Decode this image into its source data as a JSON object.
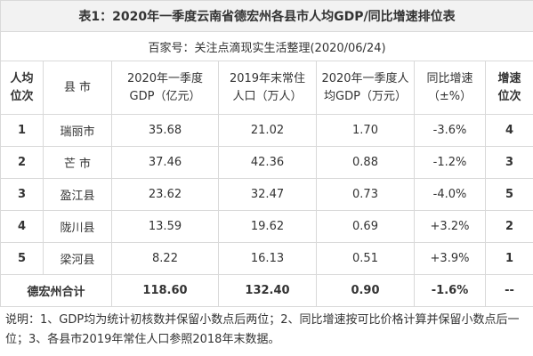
{
  "table": {
    "title": "表1：2020年一季度云南省德宏州各县市人均GDP/同比增速排位表",
    "source": "百家号：关注点滴现实生活整理(2020/06/24)",
    "header": [
      [
        "人均",
        "位次"
      ],
      [
        "县 市"
      ],
      [
        "2020年一季度",
        "GDP（亿元）"
      ],
      [
        "2019年末常住",
        "人口（万人）"
      ],
      [
        "2020年一季度人",
        "均GDP（万元）"
      ],
      [
        "同比增速",
        "（±%）"
      ],
      [
        "增速",
        "位次"
      ]
    ],
    "rows": [
      [
        "1",
        "瑞丽市",
        "35.68",
        "21.02",
        "1.70",
        "-3.6%",
        "4"
      ],
      [
        "2",
        "芒 市",
        "37.46",
        "42.36",
        "0.88",
        "-1.2%",
        "3"
      ],
      [
        "3",
        "盈江县",
        "23.62",
        "32.47",
        "0.73",
        "-4.0%",
        "5"
      ],
      [
        "4",
        "陇川县",
        "13.59",
        "19.62",
        "0.69",
        "+3.2%",
        "2"
      ],
      [
        "5",
        "梁河县",
        "8.22",
        "16.13",
        "0.51",
        "+3.9%",
        "1"
      ]
    ],
    "total": [
      "德宏州合计",
      "118.60",
      "132.40",
      "0.90",
      "-1.6%",
      "--"
    ],
    "note": "说明：1、GDP均为统计初核数并保留小数点后两位；2、同比增速按可比价格计算并保留小数点后一位；3、各县市2019年常住人口参照2018年末数据。"
  }
}
